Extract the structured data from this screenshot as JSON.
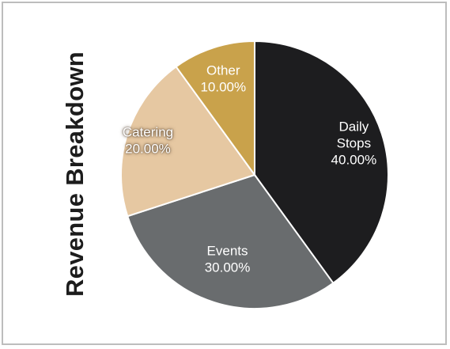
{
  "chart_data": {
    "type": "pie",
    "title": "Revenue Breakdown",
    "slices": [
      {
        "label": "Daily Stops",
        "value": 40.0,
        "value_label": "40.00%",
        "color": "#1d1d1f"
      },
      {
        "label": "Events",
        "value": 30.0,
        "value_label": "30.00%",
        "color": "#696c6e"
      },
      {
        "label": "Catering",
        "value": 20.0,
        "value_label": "20.00%",
        "color": "#e6c8a2"
      },
      {
        "label": "Other",
        "value": 10.0,
        "value_label": "10.00%",
        "color": "#c9a24b"
      }
    ],
    "start": "top",
    "direction": "clockwise",
    "legend": "none"
  }
}
